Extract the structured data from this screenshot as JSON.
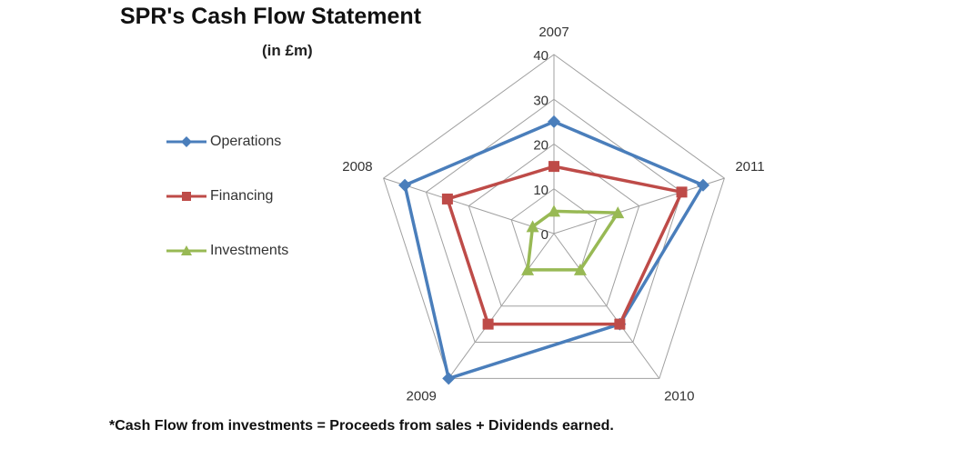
{
  "chart_data": {
    "type": "radar",
    "title": "SPR's Cash Flow Statement",
    "subtitle": "(in £m)",
    "categories": [
      "2007",
      "2011",
      "2010",
      "2009",
      "2008"
    ],
    "rmin": 0,
    "rmax": 40,
    "ticks": [
      "0",
      "10",
      "20",
      "30",
      "40"
    ],
    "tick_values": [
      0,
      10,
      20,
      30,
      40
    ],
    "series": [
      {
        "name": "Operations",
        "values": [
          25,
          35,
          25,
          40,
          35
        ],
        "color": "#4a7ebb",
        "marker": "diamond"
      },
      {
        "name": "Financing",
        "values": [
          15,
          30,
          25,
          25,
          25
        ],
        "color": "#be4b48",
        "marker": "square"
      },
      {
        "name": "Investments",
        "values": [
          5,
          15,
          10,
          10,
          5
        ],
        "color": "#98b954",
        "marker": "triangle"
      }
    ],
    "legend_position": "left",
    "grid": true
  },
  "footnote": "*Cash Flow from investments = Proceeds from sales + Dividends earned."
}
